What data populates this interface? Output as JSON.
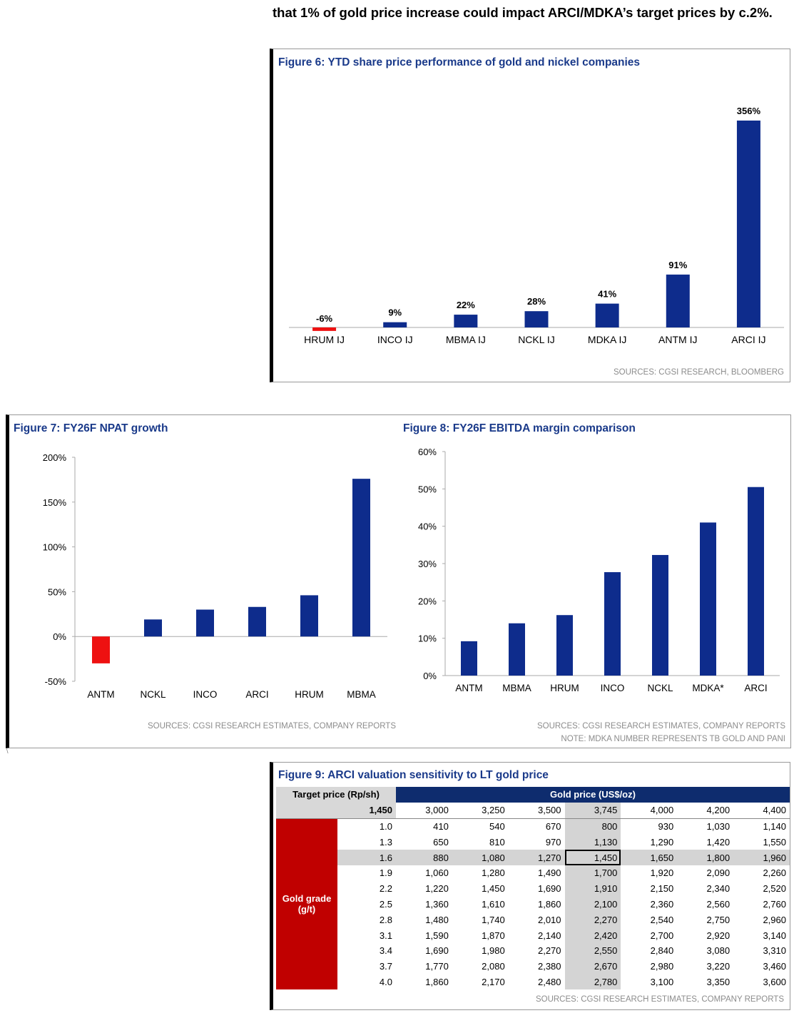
{
  "intro": {
    "text": "that 1% of gold price increase could impact ARCI/MDKA’s target prices by c.2%."
  },
  "fig6": {
    "title": "Figure 6: YTD share price performance of gold and nickel companies",
    "source": "SOURCES: CGSI RESEARCH, BLOOMBERG",
    "chart_data": {
      "type": "bar",
      "categories": [
        "HRUM IJ",
        "INCO IJ",
        "MBMA IJ",
        "NCKL IJ",
        "MDKA IJ",
        "ANTM IJ",
        "ARCI IJ"
      ],
      "values": [
        -6,
        9,
        22,
        28,
        41,
        91,
        356
      ],
      "labels": [
        "-6%",
        "9%",
        "22%",
        "28%",
        "41%",
        "91%",
        "356%"
      ],
      "colors": {
        "positive": "#0e2c8c",
        "negative": "#ee1111"
      }
    }
  },
  "fig7": {
    "title": "Figure 7: FY26F NPAT growth",
    "source": "SOURCES: CGSI RESEARCH ESTIMATES, COMPANY REPORTS",
    "chart_data": {
      "type": "bar",
      "categories": [
        "ANTM",
        "NCKL",
        "INCO",
        "ARCI",
        "HRUM",
        "MBMA"
      ],
      "values": [
        -30,
        19,
        30,
        33,
        46,
        176
      ],
      "ylim": [
        -50,
        200
      ],
      "yticks": [
        "200%",
        "150%",
        "100%",
        "50%",
        "0%",
        "-50%"
      ],
      "colors": {
        "positive": "#0e2c8c",
        "negative": "#ee1111"
      }
    }
  },
  "fig8": {
    "title": "Figure 8: FY26F EBITDA margin comparison",
    "source": "SOURCES: CGSI RESEARCH ESTIMATES, COMPANY REPORTS",
    "note": "NOTE: MDKA NUMBER REPRESENTS TB GOLD AND PANI",
    "chart_data": {
      "type": "bar",
      "categories": [
        "ANTM",
        "MBMA",
        "HRUM",
        "INCO",
        "NCKL",
        "MDKA*",
        "ARCI"
      ],
      "values": [
        9.2,
        14.0,
        16.2,
        27.7,
        32.3,
        41.0,
        50.5
      ],
      "ylim": [
        0,
        60
      ],
      "yticks": [
        "60%",
        "50%",
        "40%",
        "30%",
        "20%",
        "10%",
        "0%"
      ],
      "colors": {
        "bar": "#0e2c8c"
      }
    }
  },
  "fig9": {
    "title": "Figure 9: ARCI valuation sensitivity to LT gold price",
    "source": "SOURCES: CGSI RESEARCH ESTIMATES, COMPANY REPORTS",
    "target_price_label": "Target price (Rp/sh)",
    "gold_price_label": "Gold price (US$/oz)",
    "base_value": "1,450",
    "gold_grade_label_1": "Gold grade",
    "gold_grade_label_2": "(g/t)",
    "gold_prices": [
      "3,000",
      "3,250",
      "3,500",
      "3,745",
      "4,000",
      "4,200",
      "4,400"
    ],
    "rows": [
      {
        "grade": "1.0",
        "values": [
          "410",
          "540",
          "670",
          "800",
          "930",
          "1,030",
          "1,140"
        ]
      },
      {
        "grade": "1.3",
        "values": [
          "650",
          "810",
          "970",
          "1,130",
          "1,290",
          "1,420",
          "1,550"
        ]
      },
      {
        "grade": "1.6",
        "values": [
          "880",
          "1,080",
          "1,270",
          "1,450",
          "1,650",
          "1,800",
          "1,960"
        ]
      },
      {
        "grade": "1.9",
        "values": [
          "1,060",
          "1,280",
          "1,490",
          "1,700",
          "1,920",
          "2,090",
          "2,260"
        ]
      },
      {
        "grade": "2.2",
        "values": [
          "1,220",
          "1,450",
          "1,690",
          "1,910",
          "2,150",
          "2,340",
          "2,520"
        ]
      },
      {
        "grade": "2.5",
        "values": [
          "1,360",
          "1,610",
          "1,860",
          "2,100",
          "2,360",
          "2,560",
          "2,760"
        ]
      },
      {
        "grade": "2.8",
        "values": [
          "1,480",
          "1,740",
          "2,010",
          "2,270",
          "2,540",
          "2,750",
          "2,960"
        ]
      },
      {
        "grade": "3.1",
        "values": [
          "1,590",
          "1,870",
          "2,140",
          "2,420",
          "2,700",
          "2,920",
          "3,140"
        ]
      },
      {
        "grade": "3.4",
        "values": [
          "1,690",
          "1,980",
          "2,270",
          "2,550",
          "2,840",
          "3,080",
          "3,310"
        ]
      },
      {
        "grade": "3.7",
        "values": [
          "1,770",
          "2,080",
          "2,380",
          "2,670",
          "2,980",
          "3,220",
          "3,460"
        ]
      },
      {
        "grade": "4.0",
        "values": [
          "1,860",
          "2,170",
          "2,480",
          "2,780",
          "3,100",
          "3,350",
          "3,600"
        ]
      }
    ]
  },
  "stray_mark": "\\"
}
